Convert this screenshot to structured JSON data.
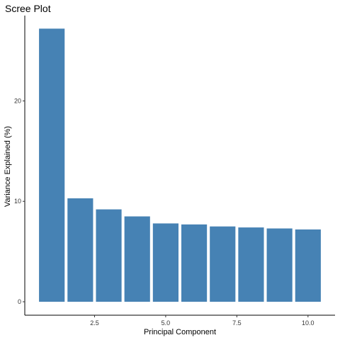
{
  "chart_data": {
    "type": "bar",
    "title": "Scree Plot",
    "xlabel": "Principal Component",
    "ylabel": "Variance Explained (%)",
    "x": [
      1,
      2,
      3,
      4,
      5,
      6,
      7,
      8,
      9,
      10
    ],
    "values": [
      27.2,
      10.3,
      9.2,
      8.5,
      7.8,
      7.7,
      7.5,
      7.4,
      7.3,
      7.2
    ],
    "xlim": [
      0.5,
      10.5
    ],
    "ylim": [
      0,
      28.5
    ],
    "x_ticks": [
      2.5,
      5.0,
      7.5,
      10.0
    ],
    "x_tick_labels": [
      "2.5",
      "5.0",
      "7.5",
      "10.0"
    ],
    "y_ticks": [
      0,
      10,
      20
    ],
    "y_tick_labels": [
      "0",
      "10",
      "20"
    ],
    "bar_color": "#4682B4",
    "grid": false,
    "legend": "none"
  }
}
